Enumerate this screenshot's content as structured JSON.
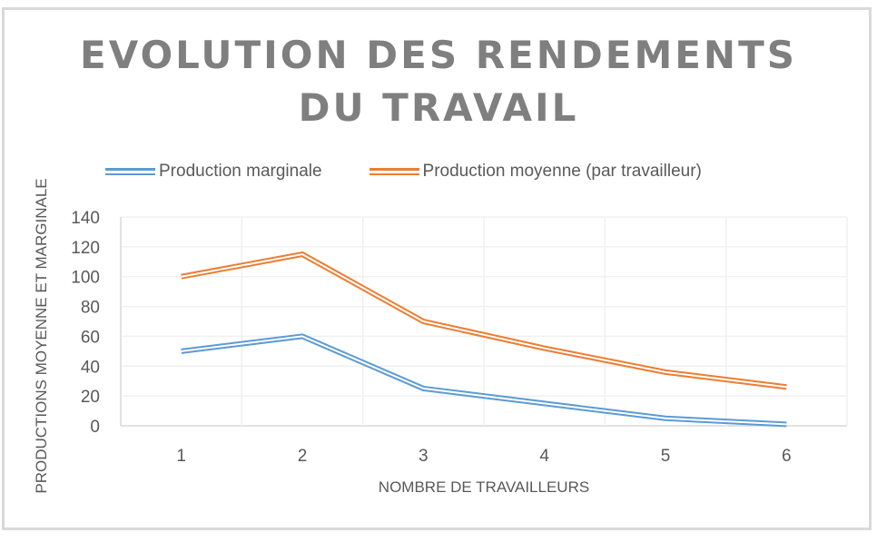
{
  "chart_data": {
    "type": "line",
    "title": "EVOLUTION DES RENDEMENTS DU TRAVAIL",
    "title_lines": [
      "EVOLUTION DES RENDEMENTS",
      "DU TRAVAIL"
    ],
    "xlabel": "NOMBRE DE TRAVAILLEURS",
    "ylabel": "PRODUCTIONS MOYENNE ET  MARGINALE",
    "categories": [
      "1",
      "2",
      "3",
      "4",
      "5",
      "6"
    ],
    "ylim": [
      0,
      140
    ],
    "yticks": [
      0,
      20,
      40,
      60,
      80,
      100,
      120,
      140
    ],
    "grid": true,
    "legend_position": "top",
    "line_style": "double",
    "series": [
      {
        "name": "Production marginale",
        "color": "#5b9bd5",
        "values": [
          50,
          60,
          25,
          15,
          5,
          1
        ]
      },
      {
        "name": "Production moyenne (par travailleur)",
        "color": "#ed7d31",
        "values": [
          100,
          115,
          70,
          52,
          36,
          26
        ]
      }
    ]
  },
  "colors": {
    "title": "#7f7f7f",
    "text": "#595959",
    "grid": "#f0f0f0",
    "frame": "#d9d9d9"
  }
}
